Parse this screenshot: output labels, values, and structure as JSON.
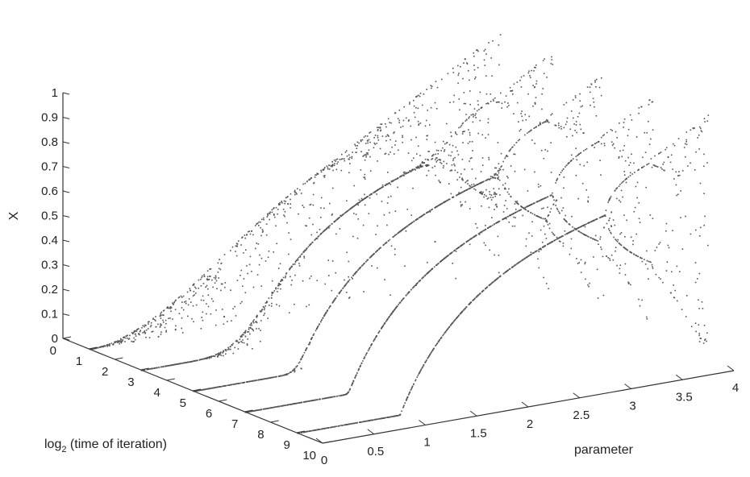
{
  "chart_data": {
    "type": "scatter",
    "title": "",
    "xlabel": "parameter",
    "ylabel_main": "log",
    "ylabel_sub": "2",
    "ylabel_rest": " (time of iteration)",
    "zlabel": "X",
    "x_range": [
      0,
      4
    ],
    "y_range": [
      0,
      10
    ],
    "z_range": [
      0,
      1
    ],
    "x_ticks": [
      "0",
      "0.5",
      "1",
      "1.5",
      "2",
      "2.5",
      "3",
      "3.5",
      "4"
    ],
    "y_ticks": [
      "0",
      "1",
      "2",
      "3",
      "4",
      "5",
      "6",
      "7",
      "8",
      "9",
      "10"
    ],
    "z_ticks": [
      "0",
      "0.1",
      "0.2",
      "0.3",
      "0.4",
      "0.5",
      "0.6",
      "0.7",
      "0.8",
      "0.9",
      "1"
    ],
    "grid": false,
    "legend": "none",
    "slices": [
      {
        "log2_time": 1,
        "description_hidden": true
      },
      {
        "log2_time": 3
      },
      {
        "log2_time": 5
      },
      {
        "log2_time": 7
      },
      {
        "log2_time": 9
      }
    ],
    "point_color": "#555555"
  }
}
